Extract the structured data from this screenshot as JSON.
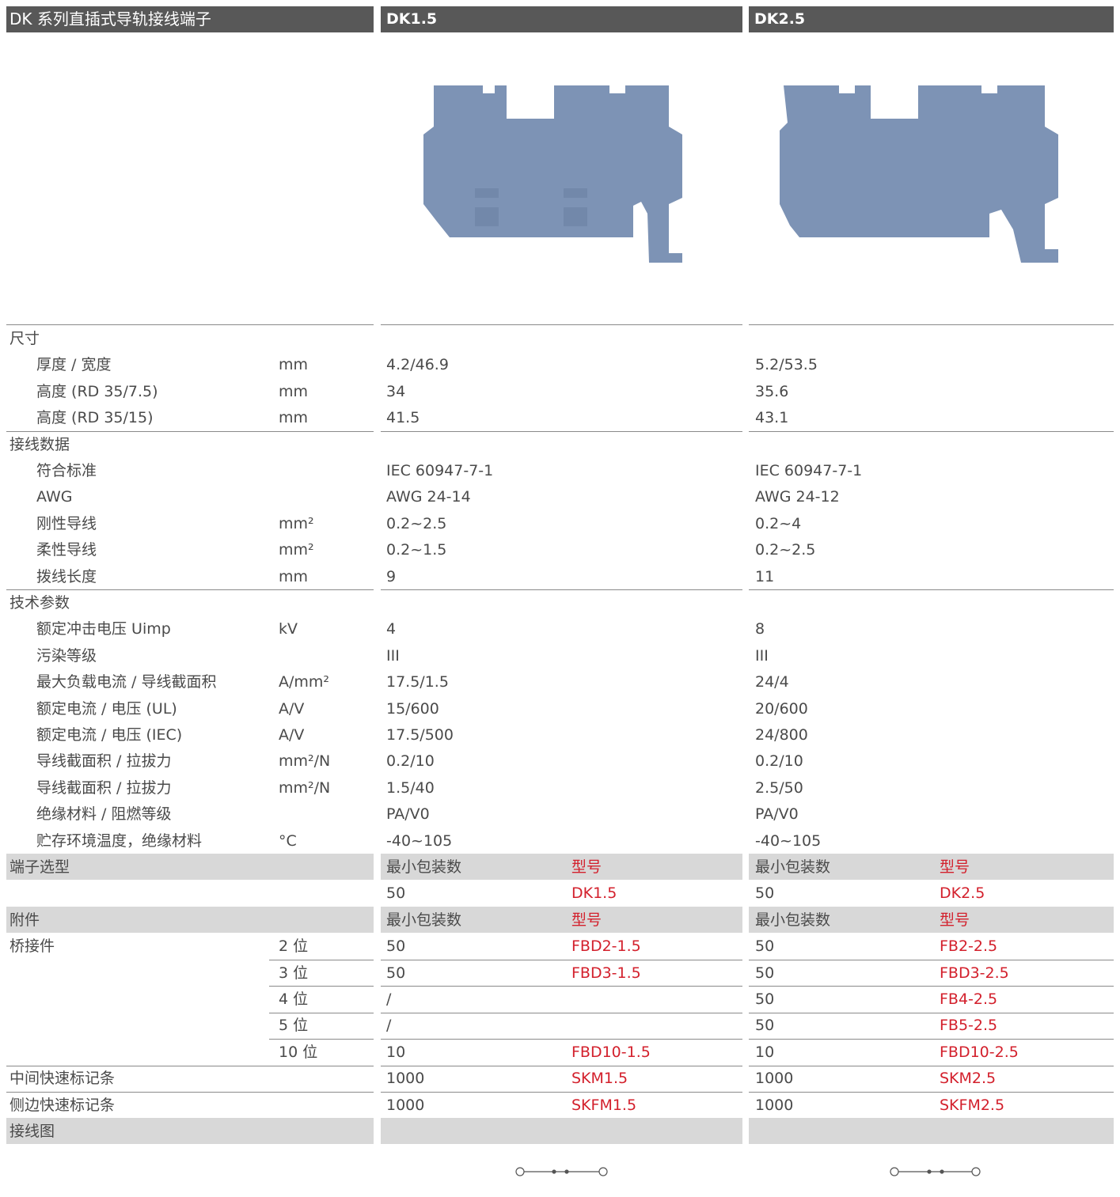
{
  "header": {
    "title": "DK 系列直插式导轨接线端子",
    "products": [
      "DK1.5",
      "DK2.5"
    ]
  },
  "sections": [
    {
      "title": "尺寸",
      "rows": [
        {
          "label": "厚度 / 宽度",
          "unit": "mm",
          "values": [
            "4.2/46.9",
            "5.2/53.5"
          ]
        },
        {
          "label": "高度 (RD 35/7.5)",
          "unit": "mm",
          "values": [
            "34",
            "35.6"
          ]
        },
        {
          "label": "高度 (RD 35/15)",
          "unit": "mm",
          "values": [
            "41.5",
            "43.1"
          ]
        }
      ]
    },
    {
      "title": "接线数据",
      "rows": [
        {
          "label": "符合标准",
          "values": [
            "IEC 60947-7-1",
            "IEC 60947-7-1"
          ]
        },
        {
          "label": "AWG",
          "values": [
            "AWG 24-14",
            "AWG 24-12"
          ]
        },
        {
          "label": "刚性导线",
          "unit": "mm²",
          "values": [
            "0.2~2.5",
            "0.2~4"
          ]
        },
        {
          "label": "柔性导线",
          "unit": "mm²",
          "values": [
            "0.2~1.5",
            "0.2~2.5"
          ]
        },
        {
          "label": "拨线长度",
          "unit": "mm",
          "values": [
            "9",
            "11"
          ]
        }
      ]
    },
    {
      "title": "技术参数",
      "rows": [
        {
          "label": "额定冲击电压 Uimp",
          "unit": "kV",
          "values": [
            "4",
            "8"
          ]
        },
        {
          "label": "污染等级",
          "values": [
            "III",
            "III"
          ]
        },
        {
          "label": "最大负载电流 / 导线截面积",
          "unit": "A/mm²",
          "values": [
            "17.5/1.5",
            "24/4"
          ]
        },
        {
          "label": "额定电流 / 电压 (UL)",
          "unit": "A/V",
          "values": [
            "15/600",
            "20/600"
          ]
        },
        {
          "label": "额定电流 / 电压 (IEC)",
          "unit": "A/V",
          "values": [
            "17.5/500",
            "24/800"
          ]
        },
        {
          "label": "导线截面积 / 拉拔力",
          "unit": "mm²/N",
          "values": [
            "0.2/10",
            "0.2/10"
          ]
        },
        {
          "label": "导线截面积 / 拉拔力",
          "unit": "mm²/N",
          "values": [
            "1.5/40",
            "2.5/50"
          ]
        },
        {
          "label": "绝缘材料 / 阻燃等级",
          "values": [
            "PA/V0",
            "PA/V0"
          ]
        },
        {
          "label": "贮存环境温度，绝缘材料",
          "unit": "°C",
          "values": [
            "-40~105",
            "-40~105"
          ]
        }
      ]
    }
  ],
  "selection": {
    "title": "端子选型",
    "col_headers": [
      "最小包装数",
      "型号"
    ],
    "rows": [
      {
        "values": [
          [
            "50",
            "DK1.5"
          ],
          [
            "50",
            "DK2.5"
          ]
        ]
      }
    ]
  },
  "accessories": {
    "title": "附件",
    "col_headers": [
      "最小包装数",
      "型号"
    ],
    "groups": [
      {
        "label": "桥接件",
        "rows": [
          {
            "unit": "2 位",
            "values": [
              [
                "50",
                "FBD2-1.5"
              ],
              [
                "50",
                "FB2-2.5"
              ]
            ]
          },
          {
            "unit": "3 位",
            "values": [
              [
                "50",
                "FBD3-1.5"
              ],
              [
                "50",
                "FBD3-2.5"
              ]
            ]
          },
          {
            "unit": "4 位",
            "values": [
              [
                "/"
              ],
              [
                "50",
                "FB4-2.5"
              ]
            ]
          },
          {
            "unit": "5 位",
            "values": [
              [
                "/"
              ],
              [
                "50",
                "FB5-2.5"
              ]
            ]
          },
          {
            "unit": "10 位",
            "values": [
              [
                "10",
                "FBD10-1.5"
              ],
              [
                "10",
                "FBD10-2.5"
              ]
            ]
          }
        ]
      },
      {
        "label": "中间快速标记条",
        "rows": [
          {
            "values": [
              [
                "1000",
                "SKM1.5"
              ],
              [
                "1000",
                "SKM2.5"
              ]
            ]
          }
        ]
      },
      {
        "label": "侧边快速标记条",
        "rows": [
          {
            "values": [
              [
                "1000",
                "SKFM1.5"
              ],
              [
                "1000",
                "SKFM2.5"
              ]
            ]
          }
        ]
      }
    ]
  },
  "wiring": {
    "title": "接线图"
  }
}
